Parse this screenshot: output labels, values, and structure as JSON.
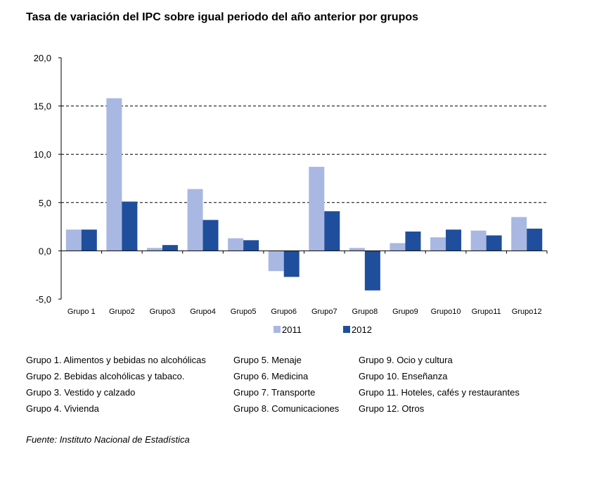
{
  "title": "Tasa de variación del IPC sobre igual periodo del año anterior por grupos",
  "source": "Fuente: Instituto Nacional de Estadística",
  "colors": {
    "s2011": "#a9b8e2",
    "s2012": "#1f4e9c"
  },
  "group_descriptions": [
    [
      "Grupo 1. Alimentos y bebidas no alcohólicas",
      "Grupo 2. Bebidas alcohólicas y  tabaco.",
      "Grupo 3. Vestido y calzado",
      "Grupo 4. Vivienda"
    ],
    [
      "Grupo 5. Menaje",
      "Grupo 6. Medicina",
      "Grupo 7. Transporte",
      "Grupo 8. Comunicaciones"
    ],
    [
      "Grupo 9. Ocio y cultura",
      "Grupo 10. Enseñanza",
      "Grupo 11. Hoteles, cafés y restaurantes",
      "Grupo 12. Otros"
    ]
  ],
  "chart_data": {
    "type": "bar",
    "title": "Tasa de variación del IPC sobre igual periodo del año anterior por grupos",
    "categories": [
      "Grupo 1",
      "Grupo2",
      "Grupo3",
      "Grupo4",
      "Grupo5",
      "Grupo6",
      "Grupo7",
      "Grupo8",
      "Grupo9",
      "Grupo10",
      "Grupo11",
      "Grupo12"
    ],
    "series": [
      {
        "name": "2011",
        "values": [
          2.2,
          15.8,
          0.3,
          6.4,
          1.3,
          -2.1,
          8.7,
          0.3,
          0.8,
          1.4,
          2.1,
          3.5
        ]
      },
      {
        "name": "2012",
        "values": [
          2.2,
          5.1,
          0.6,
          3.2,
          1.1,
          -2.7,
          4.1,
          -4.1,
          2.0,
          2.2,
          1.6,
          2.3
        ]
      }
    ],
    "yticks": [
      "20,0",
      "15,0",
      "10,0",
      "5,0",
      "0,0",
      "-5,0"
    ],
    "ylim": [
      -5,
      20
    ],
    "grid": true,
    "legend_position": "bottom"
  }
}
